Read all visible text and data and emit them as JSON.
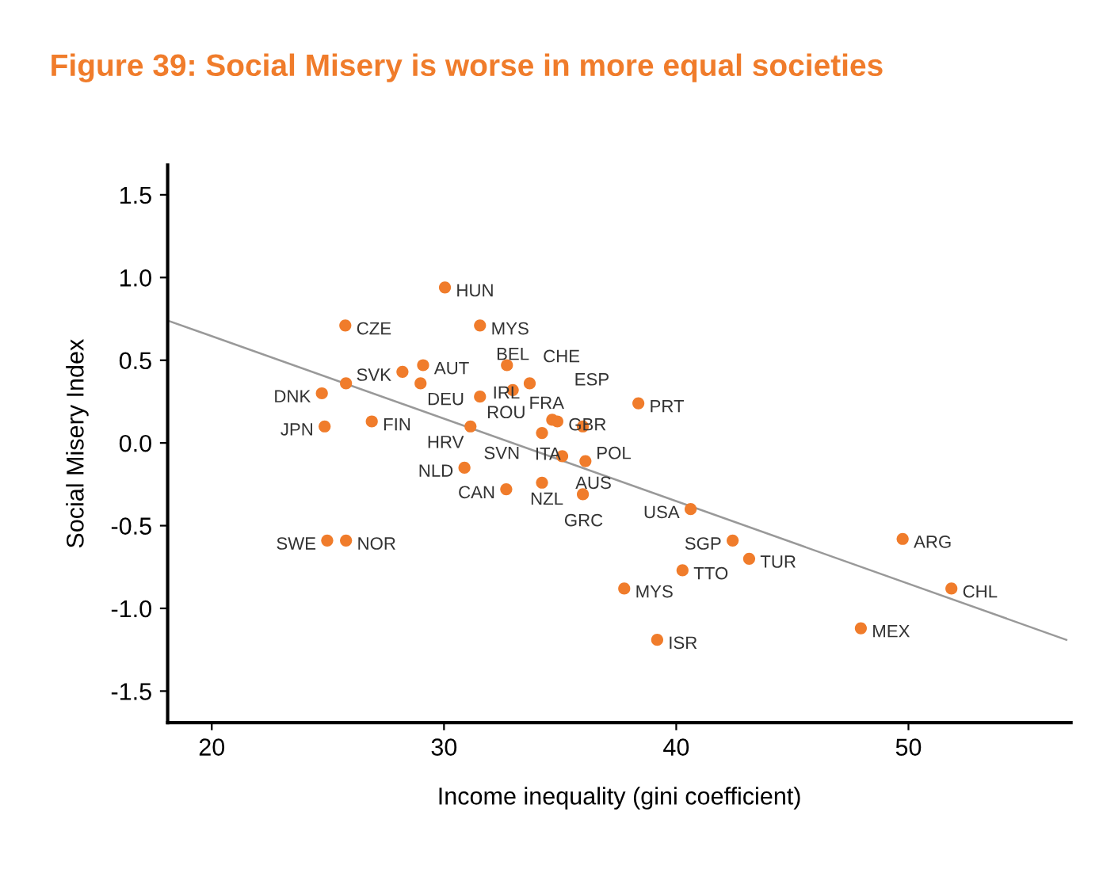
{
  "chart_data": {
    "type": "scatter",
    "title": "Figure 39: Social Misery is worse in more equal societies",
    "xlabel": "Income inequality (gini coefficient)",
    "ylabel": "Social Misery Index",
    "xlim": [
      18.1,
      57
    ],
    "ylim": [
      -1.69,
      1.68
    ],
    "xticks": [
      20,
      30,
      40,
      50
    ],
    "yticks": [
      -1.5,
      {
        "value": -1.0,
        "label": "-1.0"
      },
      -0.5,
      {
        "value": 0.0,
        "label": "0.0"
      },
      0.5,
      {
        "value": 1.0,
        "label": "1.0"
      },
      1.5
    ],
    "grid": false,
    "legend": false,
    "series": [
      {
        "marker": "circle",
        "color": "#f07c2b",
        "x": [
          25.75,
          30.04,
          31.55,
          28.21,
          29.1,
          24.74,
          25.78,
          28.99,
          31.55,
          24.86,
          26.89,
          31.14,
          30.88,
          24.97,
          25.78,
          32.71,
          33.69,
          32.96,
          38.37,
          34.66,
          34.88,
          34.22,
          35.98,
          35.09,
          36.09,
          32.68,
          34.22,
          35.98,
          40.62,
          42.43,
          43.14,
          40.27,
          37.76,
          39.18,
          47.95,
          49.75,
          51.85
        ],
        "values": [
          0.71,
          0.94,
          0.71,
          0.43,
          0.47,
          0.3,
          0.36,
          0.36,
          0.28,
          0.1,
          0.13,
          0.1,
          -0.15,
          -0.59,
          -0.59,
          0.47,
          0.36,
          0.32,
          0.24,
          0.14,
          0.13,
          0.06,
          0.1,
          -0.08,
          -0.11,
          -0.28,
          -0.24,
          -0.31,
          -0.4,
          -0.59,
          -0.7,
          -0.77,
          -0.88,
          -1.19,
          -1.12,
          -0.58,
          -0.88
        ]
      },
      {
        "type": "line",
        "color": "#999999",
        "x": [
          18.1,
          56.8
        ],
        "values": [
          0.74,
          -1.19
        ]
      }
    ],
    "annotations": [
      {
        "text": "CZE",
        "x": 25.75,
        "y": 0.71
      },
      {
        "text": "HUN",
        "x": 30.04,
        "y": 0.94
      },
      {
        "text": "MYS",
        "x": 31.55,
        "y": 0.71
      },
      {
        "text": "SVK",
        "x": 28.21,
        "y": 0.43
      },
      {
        "text": "AUT",
        "x": 29.1,
        "y": 0.47
      },
      {
        "text": "DNK",
        "x": 24.74,
        "y": 0.3
      },
      {
        "text": "DEU",
        "x": 28.99,
        "y": 0.36
      },
      {
        "text": "ROU",
        "x": 31.55,
        "y": 0.28
      },
      {
        "text": "JPN",
        "x": 24.86,
        "y": 0.1
      },
      {
        "text": "FIN",
        "x": 26.89,
        "y": 0.13
      },
      {
        "text": "HRV",
        "x": 31.14,
        "y": 0.1
      },
      {
        "text": "SVN",
        "x": 31.14,
        "y": 0.1
      },
      {
        "text": "NLD",
        "x": 30.88,
        "y": -0.15
      },
      {
        "text": "SWE",
        "x": 24.97,
        "y": -0.59
      },
      {
        "text": "NOR",
        "x": 25.78,
        "y": -0.59
      },
      {
        "text": "FRA",
        "x": 32.71,
        "y": 0.47
      },
      {
        "text": "CHE",
        "x": 33.69,
        "y": 0.36
      },
      {
        "text": "BEL",
        "x": 32.96,
        "y": 0.32
      },
      {
        "text": "PRT",
        "x": 38.37,
        "y": 0.24
      },
      {
        "text": "ESP",
        "x": 34.66,
        "y": 0.14
      },
      {
        "text": "GBR",
        "x": 34.88,
        "y": 0.13
      },
      {
        "text": "IRL",
        "x": 34.22,
        "y": 0.06
      },
      {
        "text": "POL",
        "x": 35.98,
        "y": 0.1
      },
      {
        "text": "AUS",
        "x": 35.09,
        "y": -0.08
      },
      {
        "text": "NZL",
        "x": 36.09,
        "y": -0.11
      },
      {
        "text": "CAN",
        "x": 32.68,
        "y": -0.28
      },
      {
        "text": "GRC",
        "x": 34.22,
        "y": -0.24
      },
      {
        "text": "ITA",
        "x": 35.98,
        "y": -0.31
      },
      {
        "text": "USA",
        "x": 40.62,
        "y": -0.4
      },
      {
        "text": "SGP",
        "x": 42.43,
        "y": -0.59
      },
      {
        "text": "TUR",
        "x": 43.14,
        "y": -0.7
      },
      {
        "text": "TTO",
        "x": 40.27,
        "y": -0.77
      },
      {
        "text": "MYS",
        "x": 37.76,
        "y": -0.88
      },
      {
        "text": "ISR",
        "x": 39.18,
        "y": -1.19
      },
      {
        "text": "MEX",
        "x": 47.95,
        "y": -1.12
      },
      {
        "text": "ARG",
        "x": 49.75,
        "y": -0.58
      },
      {
        "text": "CHL",
        "x": 51.85,
        "y": -0.88
      }
    ]
  }
}
